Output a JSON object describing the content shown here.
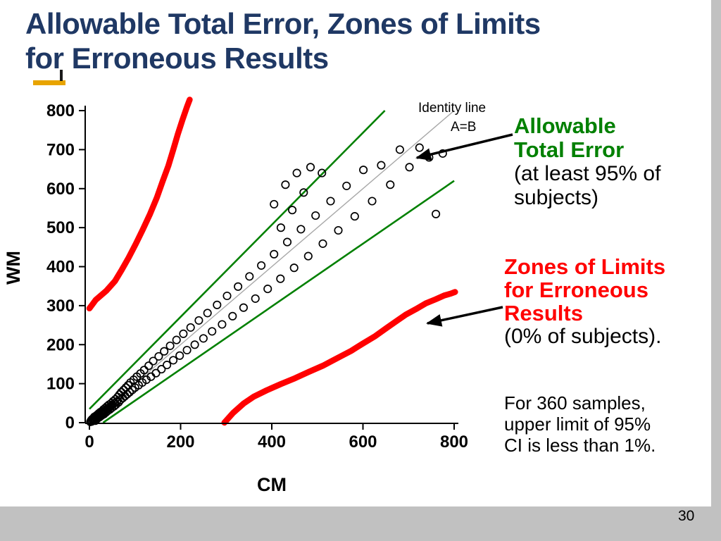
{
  "slide": {
    "title_line1": "Allowable Total Error, Zones of Limits",
    "title_line2": "for Erroneous Results",
    "page_number": "30"
  },
  "annotations": {
    "ate_heading_line1": "Allowable",
    "ate_heading_line2": "Total Error",
    "ate_sub_line1": "(at least 95% of",
    "ate_sub_line2": "subjects)",
    "zones_heading_line1": "Zones of Limits",
    "zones_heading_line2": "for Erroneous",
    "zones_heading_line3": "Results",
    "zones_sub": "(0% of subjects).",
    "note_line1": "For 360 samples,",
    "note_line2": "upper limit of 95%",
    "note_line3": "CI is less than 1%.",
    "colors": {
      "ate": "#008000",
      "zones": "#ff0000",
      "title": "#1f3864"
    }
  },
  "chart_data": {
    "type": "scatter",
    "title": "",
    "xlabel": "CM",
    "ylabel": "WM",
    "xlim": [
      0,
      800
    ],
    "ylim": [
      0,
      800
    ],
    "x_ticks": [
      0,
      200,
      400,
      600,
      800
    ],
    "y_ticks": [
      0,
      100,
      200,
      300,
      400,
      500,
      600,
      700,
      800
    ],
    "grid": "off",
    "identity_label_line1": "Identity line",
    "identity_label_line2": "A=B",
    "identity_line": [
      [
        0,
        0
      ],
      [
        800,
        800
      ]
    ],
    "ate_upper_line": [
      [
        0,
        35
      ],
      [
        648,
        800
      ]
    ],
    "ate_lower_line": [
      [
        30,
        0
      ],
      [
        800,
        620
      ]
    ],
    "zone_upper_curve": [
      [
        0,
        293
      ],
      [
        14,
        315
      ],
      [
        37,
        338
      ],
      [
        56,
        363
      ],
      [
        71,
        392
      ],
      [
        86,
        423
      ],
      [
        102,
        459
      ],
      [
        117,
        495
      ],
      [
        133,
        535
      ],
      [
        148,
        577
      ],
      [
        160,
        617
      ],
      [
        173,
        658
      ],
      [
        184,
        700
      ],
      [
        194,
        740
      ],
      [
        204,
        776
      ],
      [
        214,
        810
      ],
      [
        220,
        828
      ]
    ],
    "zone_lower_curve": [
      [
        296,
        0
      ],
      [
        315,
        25
      ],
      [
        338,
        49
      ],
      [
        361,
        67
      ],
      [
        389,
        83
      ],
      [
        420,
        99
      ],
      [
        451,
        114
      ],
      [
        481,
        130
      ],
      [
        512,
        146
      ],
      [
        543,
        165
      ],
      [
        574,
        184
      ],
      [
        600,
        203
      ],
      [
        627,
        222
      ],
      [
        651,
        242
      ],
      [
        673,
        260
      ],
      [
        694,
        277
      ],
      [
        716,
        291
      ],
      [
        738,
        306
      ],
      [
        759,
        316
      ],
      [
        778,
        326
      ],
      [
        793,
        331
      ],
      [
        802,
        335
      ]
    ],
    "scatter_points": [
      [
        2,
        2
      ],
      [
        4,
        6
      ],
      [
        5,
        3
      ],
      [
        6,
        9
      ],
      [
        8,
        5
      ],
      [
        9,
        12
      ],
      [
        10,
        8
      ],
      [
        11,
        15
      ],
      [
        12,
        10
      ],
      [
        13,
        5
      ],
      [
        14,
        13
      ],
      [
        15,
        18
      ],
      [
        16,
        9
      ],
      [
        17,
        15
      ],
      [
        18,
        21
      ],
      [
        19,
        12
      ],
      [
        20,
        17
      ],
      [
        21,
        24
      ],
      [
        22,
        14
      ],
      [
        23,
        20
      ],
      [
        24,
        27
      ],
      [
        25,
        17
      ],
      [
        26,
        23
      ],
      [
        28,
        30
      ],
      [
        29,
        20
      ],
      [
        30,
        26
      ],
      [
        31,
        34
      ],
      [
        32,
        22
      ],
      [
        34,
        29
      ],
      [
        35,
        38
      ],
      [
        36,
        26
      ],
      [
        38,
        33
      ],
      [
        39,
        42
      ],
      [
        40,
        30
      ],
      [
        42,
        37
      ],
      [
        43,
        46
      ],
      [
        45,
        34
      ],
      [
        46,
        41
      ],
      [
        48,
        50
      ],
      [
        49,
        38
      ],
      [
        50,
        45
      ],
      [
        52,
        55
      ],
      [
        54,
        42
      ],
      [
        55,
        50
      ],
      [
        57,
        60
      ],
      [
        58,
        46
      ],
      [
        60,
        54
      ],
      [
        62,
        66
      ],
      [
        64,
        52
      ],
      [
        66,
        72
      ],
      [
        68,
        58
      ],
      [
        70,
        78
      ],
      [
        73,
        63
      ],
      [
        75,
        84
      ],
      [
        78,
        68
      ],
      [
        80,
        90
      ],
      [
        83,
        73
      ],
      [
        85,
        96
      ],
      [
        88,
        78
      ],
      [
        90,
        103
      ],
      [
        94,
        84
      ],
      [
        97,
        110
      ],
      [
        100,
        90
      ],
      [
        104,
        118
      ],
      [
        108,
        96
      ],
      [
        112,
        126
      ],
      [
        116,
        103
      ],
      [
        120,
        135
      ],
      [
        125,
        110
      ],
      [
        130,
        146
      ],
      [
        135,
        118
      ],
      [
        140,
        158
      ],
      [
        146,
        127
      ],
      [
        152,
        170
      ],
      [
        158,
        137
      ],
      [
        164,
        183
      ],
      [
        170,
        148
      ],
      [
        177,
        197
      ],
      [
        184,
        160
      ],
      [
        191,
        212
      ],
      [
        198,
        172
      ],
      [
        206,
        228
      ],
      [
        214,
        186
      ],
      [
        222,
        244
      ],
      [
        231,
        200
      ],
      [
        240,
        262
      ],
      [
        250,
        216
      ],
      [
        259,
        281
      ],
      [
        269,
        234
      ],
      [
        280,
        302
      ],
      [
        291,
        252
      ],
      [
        302,
        325
      ],
      [
        314,
        273
      ],
      [
        326,
        349
      ],
      [
        338,
        295
      ],
      [
        351,
        375
      ],
      [
        364,
        318
      ],
      [
        377,
        403
      ],
      [
        391,
        343
      ],
      [
        405,
        432
      ],
      [
        419,
        369
      ],
      [
        434,
        463
      ],
      [
        449,
        397
      ],
      [
        464,
        496
      ],
      [
        480,
        427
      ],
      [
        496,
        531
      ],
      [
        512,
        459
      ],
      [
        529,
        568
      ],
      [
        546,
        493
      ],
      [
        564,
        607
      ],
      [
        582,
        529
      ],
      [
        601,
        648
      ],
      [
        620,
        568
      ],
      [
        640,
        660
      ],
      [
        660,
        610
      ],
      [
        681,
        700
      ],
      [
        702,
        655
      ],
      [
        724,
        705
      ],
      [
        745,
        680
      ],
      [
        760,
        535
      ],
      [
        775,
        690
      ],
      [
        405,
        560
      ],
      [
        420,
        500
      ],
      [
        430,
        610
      ],
      [
        445,
        545
      ],
      [
        455,
        640
      ],
      [
        470,
        590
      ],
      [
        485,
        655
      ],
      [
        510,
        640
      ]
    ],
    "colors": {
      "identity": "#a8a8a8",
      "ate_lines": "#008000",
      "zones": "#ff0000",
      "points": "#000000"
    }
  }
}
